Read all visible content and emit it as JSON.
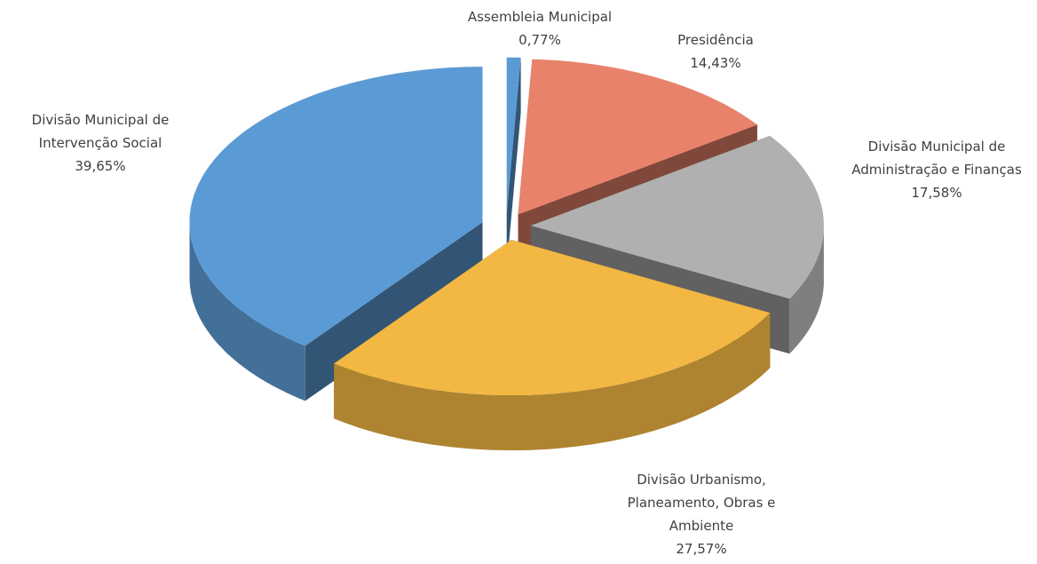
{
  "chart_data": {
    "type": "pie3d",
    "categories": [
      "Assembleia Municipal",
      "Presidência",
      "Divisão Municipal de Administração e Finanças",
      "Divisão Urbanismo, Planeamento, Obras e Ambiente",
      "Divisão Municipal de Intervenção Social"
    ],
    "values": [
      0.77,
      14.43,
      17.58,
      27.57,
      39.65
    ],
    "value_labels": [
      "0,77%",
      "14,43%",
      "17,58%",
      "27,57%",
      "39,65%"
    ],
    "colors": [
      "#5b9bd5",
      "#e9826b",
      "#b0b0b0",
      "#f2b843",
      "#5b9bd5"
    ]
  }
}
